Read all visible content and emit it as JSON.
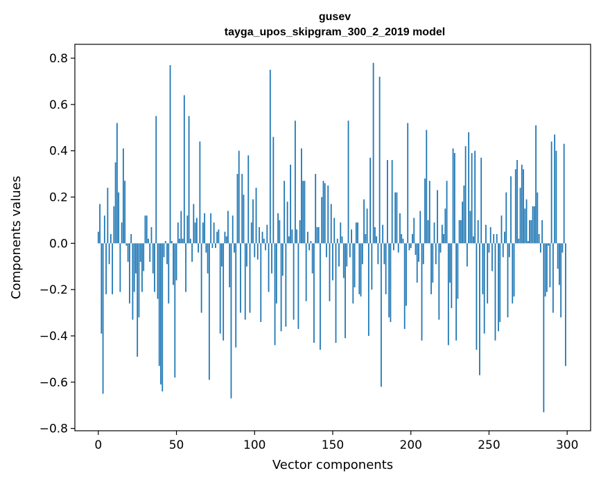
{
  "chart_data": {
    "type": "bar",
    "title": "gusev",
    "subtitle": "tayga_upos_skipgram_300_2_2019 model",
    "xlabel": "Vector components",
    "ylabel": "Components values",
    "xlim": [
      -15,
      315
    ],
    "ylim": [
      -0.81,
      0.86
    ],
    "xticks": [
      0,
      50,
      100,
      150,
      200,
      250,
      300
    ],
    "xtick_labels": [
      "0",
      "50",
      "100",
      "150",
      "200",
      "250",
      "300"
    ],
    "yticks": [
      -0.8,
      -0.6,
      -0.4,
      -0.2,
      0.0,
      0.2,
      0.4,
      0.6,
      0.8
    ],
    "ytick_labels": [
      "−0.8",
      "−0.6",
      "−0.4",
      "−0.2",
      "0.0",
      "0.2",
      "0.4",
      "0.6",
      "0.8"
    ],
    "bar_color": "#1f77b4",
    "x": [
      0,
      1,
      2,
      3,
      4,
      5,
      6,
      7,
      8,
      9,
      10,
      11,
      12,
      13,
      14,
      15,
      16,
      17,
      18,
      19,
      20,
      21,
      22,
      23,
      24,
      25,
      26,
      27,
      28,
      29,
      30,
      31,
      32,
      33,
      34,
      35,
      36,
      37,
      38,
      39,
      40,
      41,
      42,
      43,
      44,
      45,
      46,
      47,
      48,
      49,
      50,
      51,
      52,
      53,
      54,
      55,
      56,
      57,
      58,
      59,
      60,
      61,
      62,
      63,
      64,
      65,
      66,
      67,
      68,
      69,
      70,
      71,
      72,
      73,
      74,
      75,
      76,
      77,
      78,
      79,
      80,
      81,
      82,
      83,
      84,
      85,
      86,
      87,
      88,
      89,
      90,
      91,
      92,
      93,
      94,
      95,
      96,
      97,
      98,
      99,
      100,
      101,
      102,
      103,
      104,
      105,
      106,
      107,
      108,
      109,
      110,
      111,
      112,
      113,
      114,
      115,
      116,
      117,
      118,
      119,
      120,
      121,
      122,
      123,
      124,
      125,
      126,
      127,
      128,
      129,
      130,
      131,
      132,
      133,
      134,
      135,
      136,
      137,
      138,
      139,
      140,
      141,
      142,
      143,
      144,
      145,
      146,
      147,
      148,
      149,
      150,
      151,
      152,
      153,
      154,
      155,
      156,
      157,
      158,
      159,
      160,
      161,
      162,
      163,
      164,
      165,
      166,
      167,
      168,
      169,
      170,
      171,
      172,
      173,
      174,
      175,
      176,
      177,
      178,
      179,
      180,
      181,
      182,
      183,
      184,
      185,
      186,
      187,
      188,
      189,
      190,
      191,
      192,
      193,
      194,
      195,
      196,
      197,
      198,
      199,
      200,
      201,
      202,
      203,
      204,
      205,
      206,
      207,
      208,
      209,
      210,
      211,
      212,
      213,
      214,
      215,
      216,
      217,
      218,
      219,
      220,
      221,
      222,
      223,
      224,
      225,
      226,
      227,
      228,
      229,
      230,
      231,
      232,
      233,
      234,
      235,
      236,
      237,
      238,
      239,
      240,
      241,
      242,
      243,
      244,
      245,
      246,
      247,
      248,
      249,
      250,
      251,
      252,
      253,
      254,
      255,
      256,
      257,
      258,
      259,
      260,
      261,
      262,
      263,
      264,
      265,
      266,
      267,
      268,
      269,
      270,
      271,
      272,
      273,
      274,
      275,
      276,
      277,
      278,
      279,
      280,
      281,
      282,
      283,
      284,
      285,
      286,
      287,
      288,
      289,
      290,
      291,
      292,
      293,
      294,
      295,
      296,
      297,
      298,
      299
    ],
    "values": [
      0.05,
      0.17,
      -0.39,
      -0.65,
      0.12,
      -0.22,
      0.24,
      -0.09,
      0.04,
      -0.22,
      0.16,
      0.35,
      0.52,
      0.22,
      -0.21,
      0.09,
      0.41,
      0.27,
      -0.01,
      -0.08,
      -0.26,
      0.04,
      -0.33,
      -0.21,
      -0.13,
      -0.49,
      -0.32,
      -0.08,
      -0.21,
      -0.12,
      0.12,
      0.12,
      0.02,
      -0.08,
      0.07,
      -0.13,
      -0.21,
      0.55,
      -0.24,
      -0.53,
      -0.61,
      -0.64,
      -0.06,
      0.01,
      -0.09,
      -0.26,
      0.77,
      0.01,
      -0.18,
      -0.58,
      -0.16,
      0.09,
      0.02,
      0.14,
      0.02,
      0.64,
      -0.21,
      0.12,
      0.55,
      0.02,
      -0.08,
      0.17,
      0.09,
      0.11,
      -0.04,
      0.44,
      -0.3,
      0.09,
      0.13,
      -0.04,
      -0.13,
      -0.59,
      0.13,
      -0.02,
      0.09,
      -0.02,
      0.05,
      0.06,
      -0.39,
      -0.1,
      -0.42,
      0.05,
      0.03,
      0.14,
      -0.19,
      -0.67,
      0.12,
      -0.04,
      -0.45,
      0.3,
      0.4,
      -0.3,
      0.3,
      0.21,
      -0.33,
      -0.1,
      0.38,
      -0.3,
      0.09,
      0.19,
      -0.06,
      0.24,
      -0.07,
      0.07,
      -0.34,
      0.05,
      0.02,
      -0.03,
      0.08,
      -0.21,
      0.75,
      -0.13,
      0.46,
      -0.44,
      -0.26,
      0.13,
      0.1,
      -0.38,
      -0.14,
      0.27,
      -0.36,
      0.18,
      0.03,
      0.34,
      0.06,
      -0.33,
      0.53,
      0.06,
      -0.37,
      0.1,
      0.41,
      0.27,
      0.27,
      -0.25,
      0.05,
      -0.03,
      0.01,
      -0.13,
      -0.43,
      0.3,
      0.07,
      0.07,
      -0.46,
      0.2,
      0.27,
      0.26,
      -0.06,
      0.25,
      -0.25,
      0.17,
      -0.16,
      0.11,
      -0.43,
      0.02,
      -0.1,
      0.09,
      0.03,
      -0.15,
      -0.41,
      -0.1,
      0.53,
      -0.06,
      0.06,
      -0.26,
      -0.19,
      0.09,
      0.09,
      -0.22,
      -0.23,
      -0.09,
      0.19,
      0.04,
      0.15,
      -0.4,
      0.37,
      -0.2,
      0.78,
      0.07,
      0.03,
      -0.09,
      0.72,
      -0.62,
      0.08,
      -0.09,
      -0.22,
      0.36,
      -0.32,
      -0.34,
      0.36,
      -0.03,
      0.22,
      0.22,
      -0.04,
      0.13,
      0.04,
      0.02,
      -0.37,
      -0.27,
      0.52,
      -0.03,
      -0.02,
      0.04,
      0.11,
      -0.05,
      -0.17,
      -0.08,
      0.14,
      -0.42,
      -0.09,
      0.28,
      0.49,
      0.1,
      0.27,
      -0.22,
      -0.17,
      0.09,
      -0.09,
      0.23,
      -0.33,
      -0.04,
      0.08,
      0.04,
      0.15,
      0.27,
      -0.44,
      -0.17,
      -0.28,
      0.41,
      0.39,
      -0.42,
      -0.24,
      0.1,
      0.1,
      0.18,
      0.25,
      0.42,
      -0.1,
      0.48,
      0.14,
      0.39,
      0.03,
      0.4,
      -0.46,
      0.1,
      -0.57,
      0.37,
      -0.22,
      -0.39,
      0.08,
      -0.26,
      -0.04,
      0.07,
      -0.12,
      0.04,
      -0.42,
      0.04,
      -0.38,
      -0.34,
      0.12,
      -0.06,
      0.05,
      0.22,
      -0.32,
      -0.06,
      0.29,
      -0.26,
      -0.23,
      0.32,
      0.36,
      0.02,
      0.24,
      0.34,
      0.32,
      0.15,
      0.19,
      0.01,
      0.1,
      0.1,
      0.16,
      0.16,
      0.51,
      0.22,
      0.04,
      -0.04,
      0.1,
      -0.73,
      -0.23,
      -0.21,
      -0.01,
      -0.19,
      0.44,
      -0.3,
      0.47,
      0.4,
      -0.11,
      -0.18,
      -0.32,
      -0.04,
      0.43,
      -0.53
    ]
  }
}
